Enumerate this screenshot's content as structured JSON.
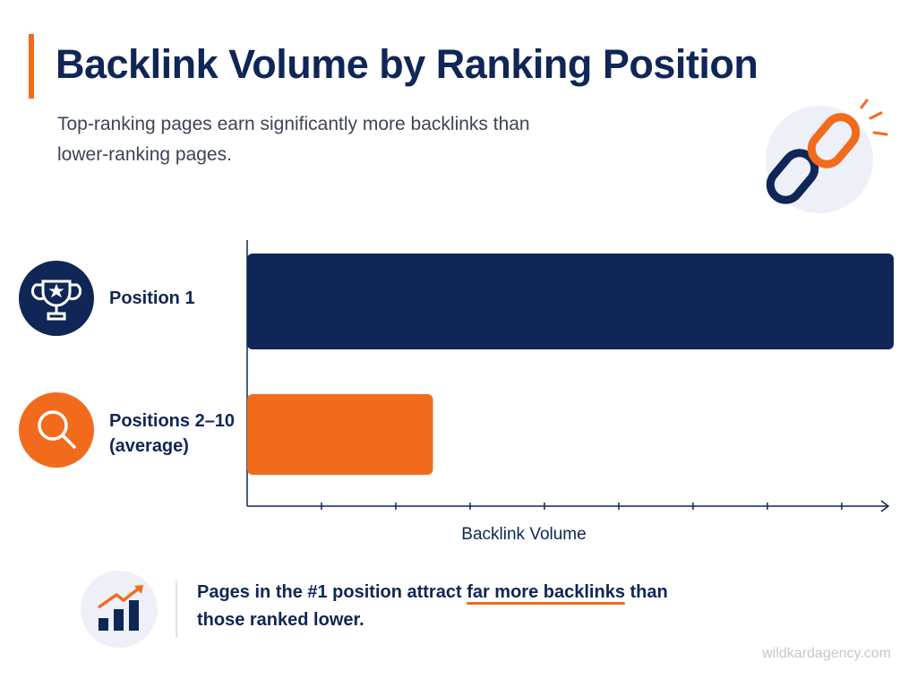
{
  "chart_data": {
    "type": "bar",
    "orientation": "horizontal",
    "title": "Backlink Volume by Ranking Position",
    "subtitle": "Top-ranking pages earn significantly more backlinks than lower-ranking pages.",
    "categories": [
      "Position 1",
      "Positions 2–10 (average)"
    ],
    "values": [
      8.7,
      2.5
    ],
    "colors": [
      "#0f2656",
      "#f26b1d"
    ],
    "xlabel": "Backlink Volume",
    "xlim": [
      0,
      8.7
    ],
    "xticks": [
      1,
      2,
      3,
      4,
      5,
      6,
      7,
      8
    ],
    "callout": {
      "before": "Pages in the #1 position attract",
      "highlight": "far more backlinks",
      "after": "than those ranked lower."
    },
    "source": "wildkardagency.com"
  }
}
